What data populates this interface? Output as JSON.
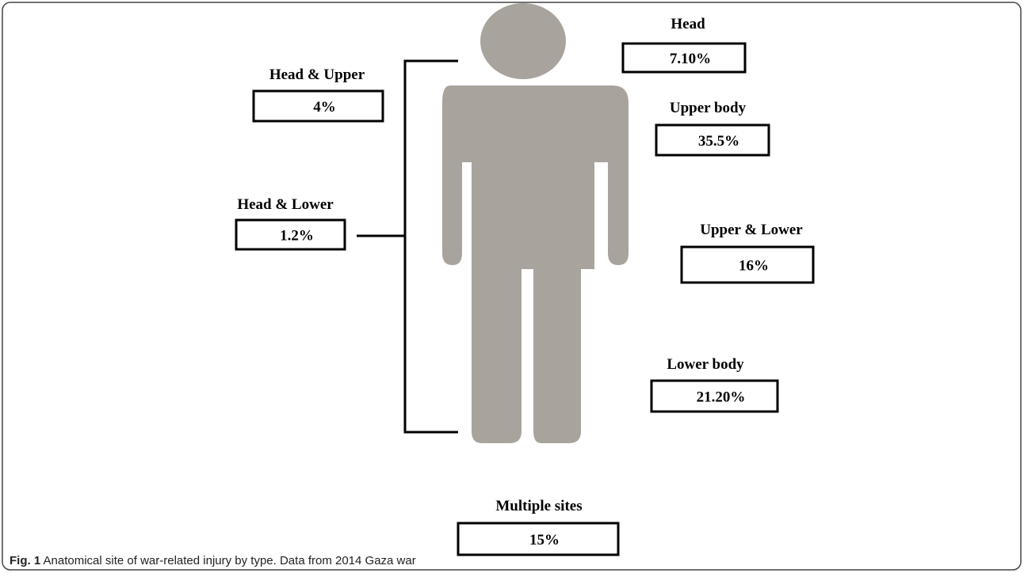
{
  "figure": {
    "nodes": [
      {
        "label": "Head",
        "value": "7.10%"
      },
      {
        "label": "Head & Upper",
        "value": "4%"
      },
      {
        "label": "Upper body",
        "value": "35.5%"
      },
      {
        "label": "Head & Lower",
        "value": "1.2%"
      },
      {
        "label": "Upper & Lower",
        "value": "16%"
      },
      {
        "label": "Lower body",
        "value": "21.20%"
      },
      {
        "label": "Multiple sites",
        "value": "15%"
      }
    ],
    "caption": {
      "number": "Fig. 1",
      "text": "Anatomical site of war-related injury by type. Data from 2014 Gaza war"
    }
  }
}
